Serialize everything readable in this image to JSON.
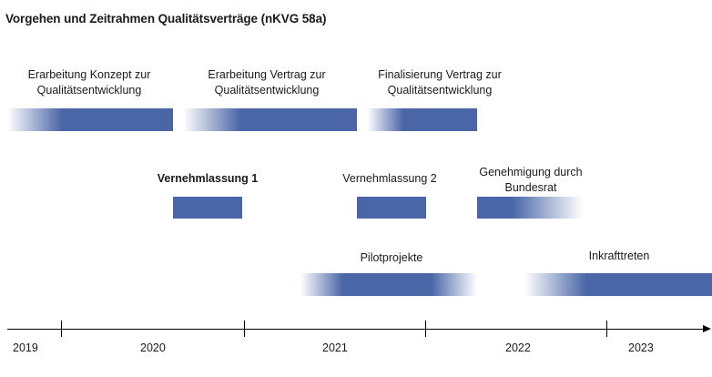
{
  "title": "Vorgehen und Zeitrahmen Qualitätsverträge (nKVG 58a)",
  "phases": {
    "konzept": {
      "line1": "Erarbeitung Konzept zur",
      "line2": "Qualitätsentwicklung"
    },
    "vertrag": {
      "line1": "Erarbeitung Vertrag zur",
      "line2": "Qualitätsentwicklung"
    },
    "finalisierung": {
      "line1": "Finalisierung  Vertrag zur",
      "line2": "Qualitätsentwicklung"
    },
    "vernehmlassung1": {
      "label": "Vernehmlassung 1"
    },
    "vernehmlassung2": {
      "label": "Vernehmlassung  2"
    },
    "genehmigung": {
      "line1": "Genehmigung durch",
      "line2": "Bundesrat"
    },
    "pilotprojekte": {
      "label": "Pilotprojekte"
    },
    "inkrafttreten": {
      "label": "Inkrafttreten"
    }
  },
  "timeline": {
    "years": [
      "2019",
      "2020",
      "2021",
      "2022",
      "2023"
    ]
  },
  "colors": {
    "bar": "#4a66a7",
    "text": "#1a1a1a",
    "axis": "#000000"
  }
}
